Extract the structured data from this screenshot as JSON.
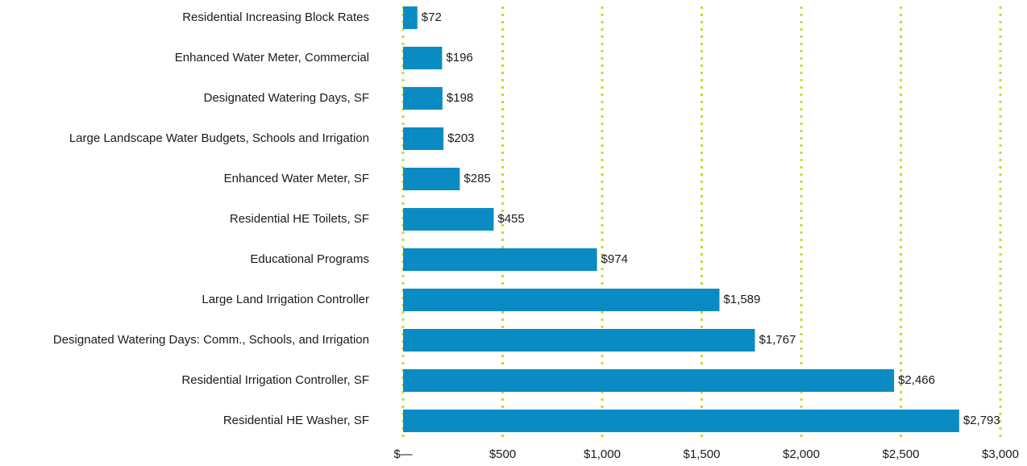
{
  "chart_data": {
    "type": "bar",
    "orientation": "horizontal",
    "categories": [
      "Residential Increasing Block Rates",
      "Enhanced Water Meter, Commercial",
      "Designated Watering Days, SF",
      "Large Landscape Water Budgets, Schools and Irrigation",
      "Enhanced Water Meter, SF",
      "Residential HE Toilets, SF",
      "Educational Programs",
      "Large Land Irrigation Controller",
      "Designated Watering Days: Comm., Schools, and Irrigation",
      "Residential Irrigation Controller, SF",
      "Residential HE Washer, SF"
    ],
    "values": [
      72,
      196,
      198,
      203,
      285,
      455,
      974,
      1589,
      1767,
      2466,
      2793
    ],
    "value_labels": [
      "$72",
      "$196",
      "$198",
      "$203",
      "$285",
      "$455",
      "$974",
      "$1,589",
      "$1,767",
      "$2,466",
      "$2,793"
    ],
    "color": "#0a8bc4",
    "xlim": [
      0,
      3000
    ],
    "xticks": [
      {
        "value": 0,
        "label": "$—"
      },
      {
        "value": 500,
        "label": "$500"
      },
      {
        "value": 1000,
        "label": "$1,000"
      },
      {
        "value": 1500,
        "label": "$1,500"
      },
      {
        "value": 2000,
        "label": "$2,000"
      },
      {
        "value": 2500,
        "label": "$2,500"
      },
      {
        "value": 3000,
        "label": "$3,000"
      }
    ],
    "grid": true,
    "grid_color": "#c9d82b"
  }
}
